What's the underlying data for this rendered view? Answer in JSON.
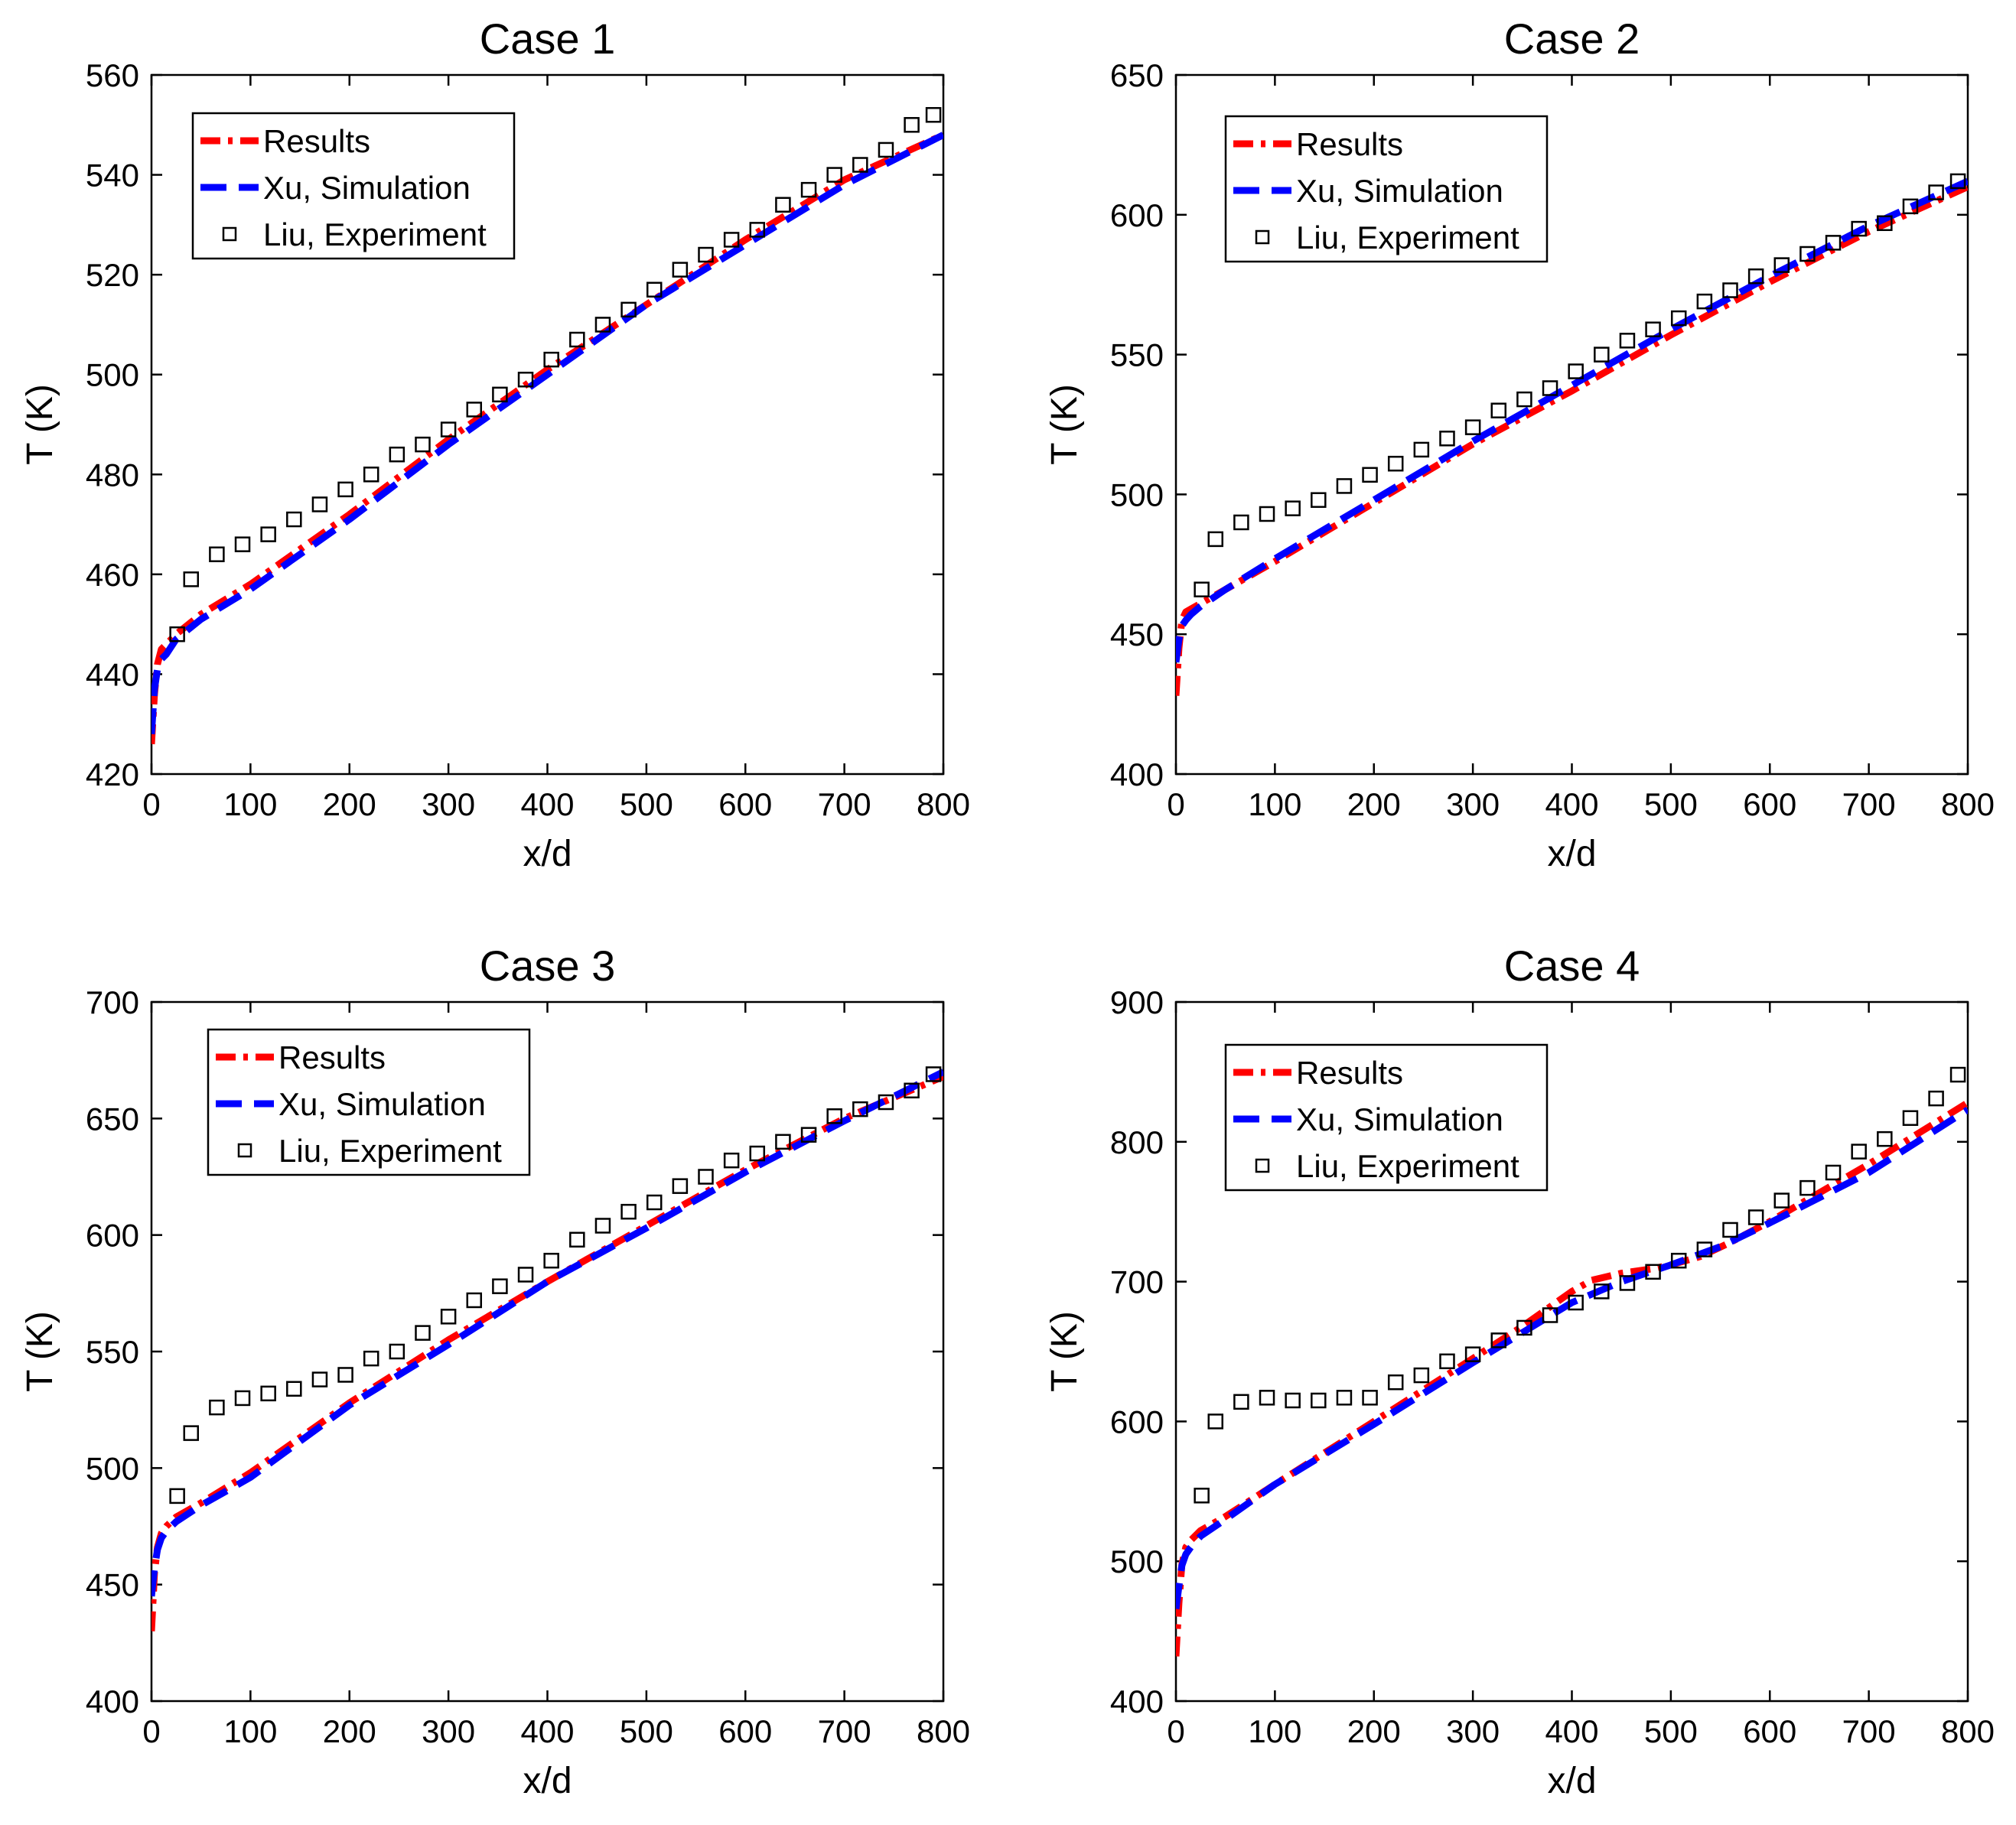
{
  "colors": {
    "results": "#ff0000",
    "xu": "#0000ff",
    "liu": "#000000"
  },
  "chart_data": [
    {
      "type": "line",
      "title": "Case 1",
      "xlabel": "x/d",
      "ylabel": "T (K)",
      "xlim": [
        0,
        800
      ],
      "ylim": [
        420,
        560
      ],
      "xticks": [
        0,
        100,
        200,
        300,
        400,
        500,
        600,
        700,
        800
      ],
      "yticks": [
        420,
        440,
        460,
        480,
        500,
        520,
        540,
        560
      ],
      "legend": [
        "Results",
        "Xu, Simulation",
        "Liu, Experiment"
      ],
      "legend_position": "top-left",
      "series": [
        {
          "name": "Results",
          "style": "dash-dot",
          "x": [
            0,
            3,
            6,
            10,
            15,
            25,
            50,
            100,
            200,
            300,
            400,
            500,
            600,
            700,
            800
          ],
          "y": [
            426,
            436,
            442,
            445,
            446,
            448,
            452,
            458,
            472,
            487,
            501,
            514,
            527,
            539,
            548
          ]
        },
        {
          "name": "Xu, Simulation",
          "style": "dashed",
          "x": [
            0,
            3,
            6,
            10,
            15,
            25,
            50,
            100,
            200,
            300,
            400,
            500,
            600,
            700,
            800
          ],
          "y": [
            428,
            437,
            441,
            443,
            444,
            447,
            451,
            457,
            471,
            486,
            500,
            514,
            526,
            538,
            548
          ]
        },
        {
          "name": "Liu, Experiment",
          "style": "marker",
          "x": [
            26,
            40,
            66,
            92,
            118,
            144,
            170,
            196,
            222,
            248,
            274,
            300,
            326,
            352,
            378,
            404,
            430,
            456,
            482,
            508,
            534,
            560,
            586,
            612,
            638,
            664,
            690,
            716,
            742,
            768,
            790
          ],
          "y": [
            448,
            459,
            464,
            466,
            468,
            471,
            474,
            477,
            480,
            484,
            486,
            489,
            493,
            496,
            499,
            503,
            507,
            510,
            513,
            517,
            521,
            524,
            527,
            529,
            534,
            537,
            540,
            542,
            545,
            550,
            552
          ]
        }
      ]
    },
    {
      "type": "line",
      "title": "Case 2",
      "xlabel": "x/d",
      "ylabel": "T (K)",
      "xlim": [
        0,
        800
      ],
      "ylim": [
        400,
        650
      ],
      "xticks": [
        0,
        100,
        200,
        300,
        400,
        500,
        600,
        700,
        800
      ],
      "yticks": [
        400,
        450,
        500,
        550,
        600,
        650
      ],
      "legend": [
        "Results",
        "Xu, Simulation",
        "Liu, Experiment"
      ],
      "legend_position": "top-left",
      "series": [
        {
          "name": "Results",
          "style": "dash-dot",
          "x": [
            0,
            3,
            6,
            10,
            15,
            25,
            50,
            100,
            200,
            300,
            400,
            500,
            600,
            700,
            800
          ],
          "y": [
            428,
            445,
            455,
            458,
            459,
            461,
            466,
            476,
            497,
            518,
            537,
            557,
            576,
            594,
            610
          ]
        },
        {
          "name": "Xu, Simulation",
          "style": "dashed",
          "x": [
            0,
            3,
            6,
            10,
            15,
            25,
            50,
            100,
            200,
            300,
            400,
            500,
            600,
            700,
            800
          ],
          "y": [
            440,
            448,
            453,
            455,
            457,
            460,
            466,
            477,
            498,
            519,
            539,
            559,
            578,
            596,
            612
          ]
        },
        {
          "name": "Liu, Experiment",
          "style": "marker",
          "x": [
            26,
            40,
            66,
            92,
            118,
            144,
            170,
            196,
            222,
            248,
            274,
            300,
            326,
            352,
            378,
            404,
            430,
            456,
            482,
            508,
            534,
            560,
            586,
            612,
            638,
            664,
            690,
            716,
            742,
            768,
            790
          ],
          "y": [
            466,
            484,
            490,
            493,
            495,
            498,
            503,
            507,
            511,
            516,
            520,
            524,
            530,
            534,
            538,
            544,
            550,
            555,
            559,
            563,
            569,
            573,
            578,
            582,
            586,
            590,
            595,
            597,
            603,
            608,
            612
          ]
        }
      ]
    },
    {
      "type": "line",
      "title": "Case 3",
      "xlabel": "x/d",
      "ylabel": "T (K)",
      "xlim": [
        0,
        800
      ],
      "ylim": [
        400,
        700
      ],
      "xticks": [
        0,
        100,
        200,
        300,
        400,
        500,
        600,
        700,
        800
      ],
      "yticks": [
        400,
        450,
        500,
        550,
        600,
        650,
        700
      ],
      "legend": [
        "Results",
        "Xu, Simulation",
        "Liu, Experiment"
      ],
      "legend_position": "top-left",
      "series": [
        {
          "name": "Results",
          "style": "dash-dot",
          "x": [
            0,
            3,
            6,
            10,
            15,
            25,
            50,
            100,
            200,
            300,
            400,
            500,
            600,
            700,
            800
          ],
          "y": [
            430,
            455,
            466,
            472,
            475,
            479,
            485,
            498,
            528,
            555,
            580,
            604,
            628,
            650,
            668
          ]
        },
        {
          "name": "Xu, Simulation",
          "style": "dashed",
          "x": [
            0,
            3,
            6,
            10,
            15,
            25,
            50,
            100,
            200,
            300,
            400,
            500,
            600,
            700,
            800
          ],
          "y": [
            445,
            457,
            465,
            470,
            473,
            477,
            484,
            496,
            527,
            553,
            580,
            603,
            627,
            649,
            670
          ]
        },
        {
          "name": "Liu, Experiment",
          "style": "marker",
          "x": [
            26,
            40,
            66,
            92,
            118,
            144,
            170,
            196,
            222,
            248,
            274,
            300,
            326,
            352,
            378,
            404,
            430,
            456,
            482,
            508,
            534,
            560,
            586,
            612,
            638,
            664,
            690,
            716,
            742,
            768,
            790
          ],
          "y": [
            488,
            515,
            526,
            530,
            532,
            534,
            538,
            540,
            547,
            550,
            558,
            565,
            572,
            578,
            583,
            589,
            598,
            604,
            610,
            614,
            621,
            625,
            632,
            635,
            640,
            643,
            651,
            654,
            657,
            662,
            669
          ]
        }
      ]
    },
    {
      "type": "line",
      "title": "Case 4",
      "xlabel": "x/d",
      "ylabel": "T (K)",
      "xlim": [
        0,
        800
      ],
      "ylim": [
        400,
        900
      ],
      "xticks": [
        0,
        100,
        200,
        300,
        400,
        500,
        600,
        700,
        800
      ],
      "yticks": [
        400,
        500,
        600,
        700,
        800,
        900
      ],
      "legend": [
        "Results",
        "Xu, Simulation",
        "Liu, Experiment"
      ],
      "legend_position": "top-left",
      "series": [
        {
          "name": "Results",
          "style": "dash-dot",
          "x": [
            0,
            3,
            6,
            10,
            15,
            25,
            50,
            100,
            200,
            300,
            350,
            380,
            400,
            420,
            450,
            480,
            500,
            530,
            560,
            600,
            700,
            800
          ],
          "y": [
            432,
            470,
            498,
            510,
            515,
            522,
            532,
            555,
            600,
            645,
            668,
            683,
            693,
            701,
            706,
            709,
            712,
            718,
            728,
            743,
            784,
            828
          ]
        },
        {
          "name": "Xu, Simulation",
          "style": "dashed",
          "x": [
            0,
            3,
            6,
            10,
            15,
            25,
            50,
            100,
            200,
            300,
            400,
            450,
            500,
            550,
            600,
            700,
            800
          ],
          "y": [
            466,
            482,
            497,
            505,
            510,
            518,
            530,
            555,
            598,
            642,
            685,
            700,
            712,
            725,
            742,
            778,
            823
          ]
        },
        {
          "name": "Liu, Experiment",
          "style": "marker",
          "x": [
            26,
            40,
            66,
            92,
            118,
            144,
            170,
            196,
            222,
            248,
            274,
            300,
            326,
            352,
            378,
            404,
            430,
            456,
            482,
            508,
            534,
            560,
            586,
            612,
            638,
            664,
            690,
            716,
            742,
            768,
            790
          ],
          "y": [
            547,
            600,
            614,
            617,
            615,
            615,
            617,
            617,
            628,
            633,
            643,
            648,
            658,
            667,
            676,
            685,
            693,
            699,
            707,
            715,
            723,
            737,
            746,
            758,
            767,
            778,
            793,
            802,
            817,
            831,
            848
          ]
        }
      ]
    }
  ]
}
